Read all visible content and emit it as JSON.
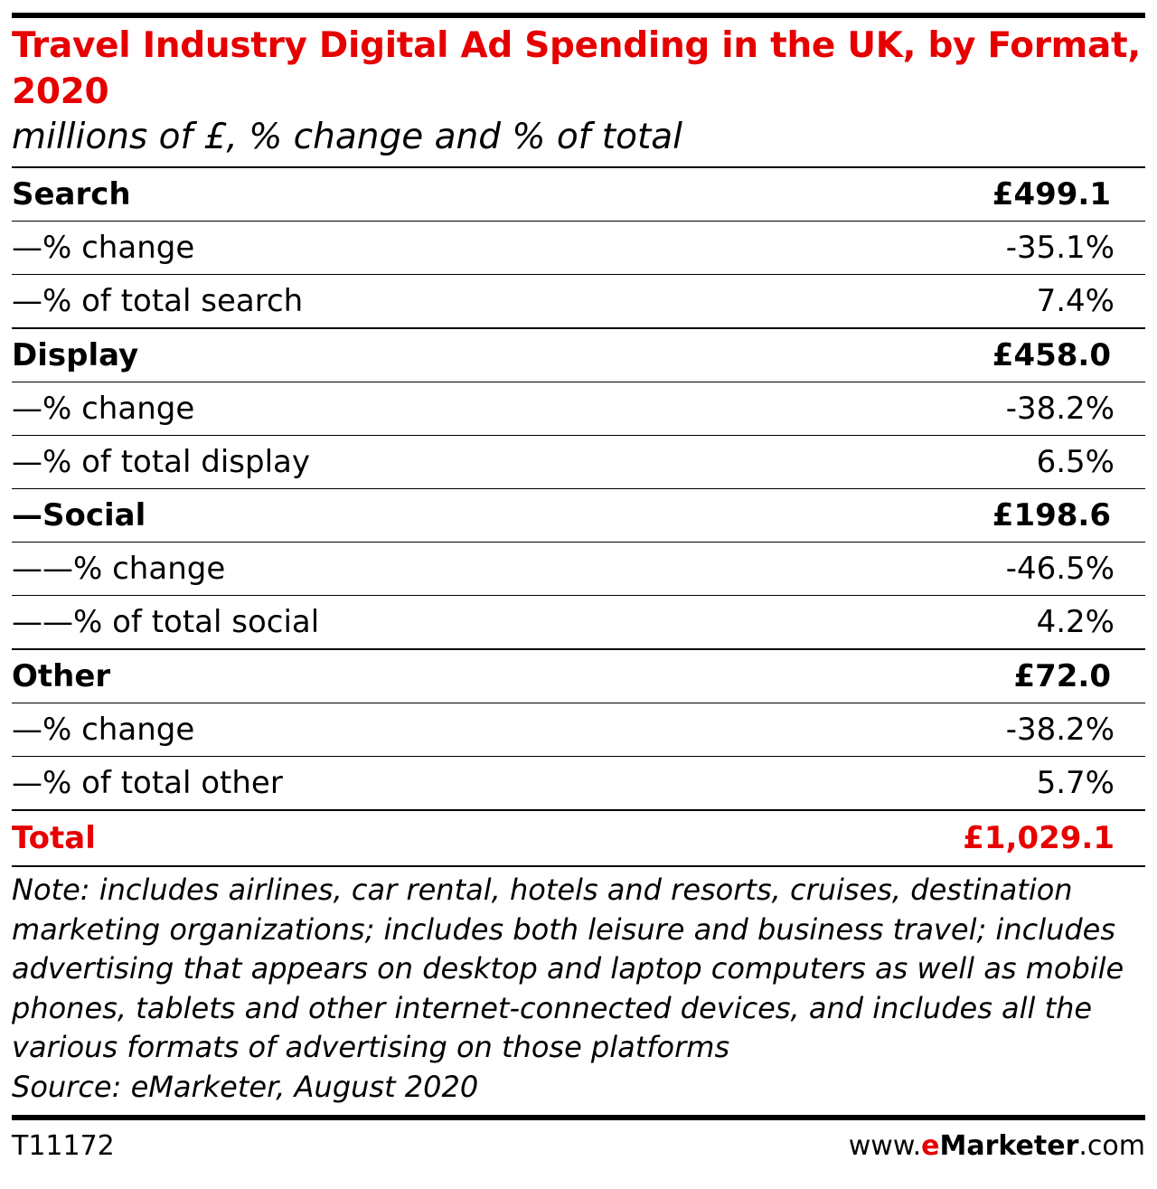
{
  "header": {
    "title": "Travel Industry Digital Ad Spending in the UK, by Format, 2020",
    "subtitle": "millions of £, % change and % of total"
  },
  "chart_data": {
    "type": "table",
    "rows": [
      {
        "label": "Search",
        "value": "£499.1",
        "kind": "main"
      },
      {
        "label": "—% change",
        "value": "-35.1%",
        "kind": "sub"
      },
      {
        "label": "—% of total search",
        "value": "7.4%",
        "kind": "sub-end"
      },
      {
        "label": "Display",
        "value": "£458.0",
        "kind": "main"
      },
      {
        "label": "—% change",
        "value": "-38.2%",
        "kind": "sub"
      },
      {
        "label": "—% of total display",
        "value": "6.5%",
        "kind": "sub"
      },
      {
        "label": "—Social",
        "value": "£198.6",
        "kind": "main"
      },
      {
        "label": "——% change",
        "value": "-46.5%",
        "kind": "sub"
      },
      {
        "label": "——% of total social",
        "value": "4.2%",
        "kind": "sub-end"
      },
      {
        "label": "Other",
        "value": "£72.0",
        "kind": "main"
      },
      {
        "label": "—% change",
        "value": "-38.2%",
        "kind": "sub"
      },
      {
        "label": "—% of total other",
        "value": "5.7%",
        "kind": "sub-end"
      }
    ],
    "total": {
      "label": "Total",
      "value": "£1,029.1"
    }
  },
  "note": "Note: includes airlines, car rental, hotels and resorts, cruises, destination marketing organizations; includes both leisure and business travel; includes advertising that appears on desktop and laptop computers as well as mobile phones, tablets and other internet-connected devices, and includes all the various formats of advertising on those platforms",
  "source": "Source: eMarketer, August 2020",
  "footer": {
    "id": "T11172",
    "brand_prefix": "www.",
    "brand_e": "e",
    "brand_name": "Marketer",
    "brand_suffix": ".com"
  },
  "colors": {
    "accent": "#e60000",
    "text": "#000000"
  }
}
